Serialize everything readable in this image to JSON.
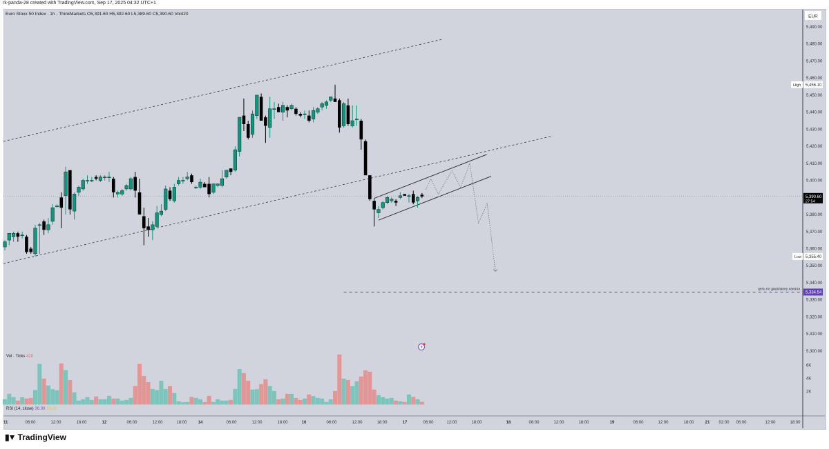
{
  "credit": "rk-panda-28 created with TradingView.com, Sep 17, 2025 04:32 UTC+1",
  "legend": {
    "symbol": "Euro Stoxx 50 Index · 1h · ThinkMarkets",
    "o": "O5,391.60",
    "h": "H5,392.60",
    "l": "L5,389.60",
    "c": "C5,390.60",
    "vol": "Vol420"
  },
  "volume_legend": {
    "label": "Vol · Ticks",
    "value": "420"
  },
  "rsi_legend": {
    "label": "RSI (14, close)",
    "value1": "36.98",
    "value2": "33.10"
  },
  "currency": "EUR",
  "logo_text": "TradingView",
  "colors": {
    "up": "#089981",
    "down": "#000000",
    "vol_up": "#7cc4bc",
    "vol_down": "#e49696",
    "target": "#5e3fb5",
    "bg": "#d1d4dc"
  },
  "price_axis": {
    "labels": [
      "5,490.00",
      "5,480.00",
      "5,470.00",
      "5,460.00",
      "5,450.00",
      "5,440.00",
      "5,430.00",
      "5,420.00",
      "5,410.00",
      "5,400.00",
      "5,380.00",
      "5,370.00",
      "5,360.00",
      "5,350.00",
      "5,340.00",
      "5,330.00",
      "5,320.00",
      "5,310.00",
      "5,300.00"
    ],
    "values": [
      5490,
      5480,
      5470,
      5460,
      5450,
      5440,
      5430,
      5420,
      5410,
      5400,
      5380,
      5370,
      5360,
      5350,
      5340,
      5330,
      5320,
      5310,
      5300
    ]
  },
  "markers": {
    "high": {
      "tag": "High",
      "price": "5,456.10",
      "value": 5456.1
    },
    "last": {
      "price": "5,390.60",
      "countdown": "27:54",
      "value": 5390.6
    },
    "low": {
      "tag": "Low",
      "price": "5,355.40",
      "value": 5355.4
    },
    "target": {
      "price": "5,334.54",
      "value": 5334.54,
      "text": "цель по диапазону канала"
    }
  },
  "volume_axis": {
    "labels": [
      "6K",
      "4K",
      "2K"
    ],
    "values": [
      6000,
      4000,
      2000
    ]
  },
  "time_axis": {
    "labels": [
      "11",
      "06:00",
      "12:00",
      "18:00",
      "12",
      "06:00",
      "12:00",
      "18:00",
      "14",
      "06:00",
      "12:00",
      "18:00",
      "16",
      "06:00",
      "12:00",
      "18:00",
      "17",
      "06:00",
      "12:00",
      "18:00",
      "18",
      "06:00",
      "12:00",
      "18:00",
      "19",
      "06:00",
      "12:00",
      "18:00",
      "21",
      "02:00",
      "06:00",
      "12:00",
      "18:00"
    ]
  },
  "chart_data": {
    "type": "candlestick",
    "title": "Euro Stoxx 50 Index · 1h · ThinkMarkets",
    "ylim": [
      5290,
      5495
    ],
    "ohlc": [
      [
        5361,
        5365,
        5359,
        5364
      ],
      [
        5365,
        5369,
        5362,
        5369
      ],
      [
        5367,
        5370,
        5364,
        5369
      ],
      [
        5369,
        5370,
        5364,
        5367
      ],
      [
        5368,
        5370,
        5366,
        5368
      ],
      [
        5367,
        5368,
        5357,
        5358
      ],
      [
        5360,
        5361,
        5357,
        5358
      ],
      [
        5357,
        5374,
        5355.4,
        5372
      ],
      [
        5374,
        5375,
        5357,
        5374
      ],
      [
        5376,
        5377,
        5368,
        5371
      ],
      [
        5371,
        5378,
        5369,
        5374
      ],
      [
        5376,
        5386,
        5374,
        5384
      ],
      [
        5385,
        5386,
        5384,
        5385
      ],
      [
        5390,
        5393,
        5372,
        5384
      ],
      [
        5391,
        5408,
        5380,
        5405
      ],
      [
        5406,
        5406,
        5380,
        5383
      ],
      [
        5382,
        5393,
        5377,
        5392
      ],
      [
        5393,
        5397,
        5391,
        5396
      ],
      [
        5395,
        5401,
        5394,
        5400
      ],
      [
        5400,
        5403,
        5398,
        5400
      ],
      [
        5400,
        5402,
        5399,
        5400
      ],
      [
        5402,
        5403,
        5400,
        5401
      ],
      [
        5400,
        5403,
        5399,
        5402
      ],
      [
        5402,
        5403,
        5400,
        5402
      ],
      [
        5402,
        5405,
        5399,
        5402
      ],
      [
        5401,
        5402,
        5390,
        5393
      ],
      [
        5392,
        5394,
        5390,
        5393
      ],
      [
        5392,
        5395,
        5391,
        5394
      ],
      [
        5395,
        5398,
        5394,
        5397
      ],
      [
        5395,
        5402,
        5394,
        5401
      ],
      [
        5402,
        5405,
        5390,
        5394
      ],
      [
        5393,
        5401,
        5380,
        5380
      ],
      [
        5379,
        5384,
        5362,
        5372
      ],
      [
        5373,
        5378,
        5367,
        5371
      ],
      [
        5371,
        5376,
        5365,
        5374
      ],
      [
        5373,
        5385,
        5372,
        5381
      ],
      [
        5380,
        5386,
        5379,
        5382
      ],
      [
        5383,
        5397,
        5382,
        5395
      ],
      [
        5394,
        5396,
        5388,
        5389
      ],
      [
        5388,
        5398,
        5387,
        5396
      ],
      [
        5398,
        5402,
        5397,
        5400
      ],
      [
        5400,
        5402,
        5398,
        5400
      ],
      [
        5401,
        5405,
        5400,
        5402
      ],
      [
        5403,
        5404,
        5398,
        5399
      ],
      [
        5396,
        5397,
        5395,
        5396
      ],
      [
        5396,
        5401,
        5395,
        5399
      ],
      [
        5398,
        5399,
        5396,
        5396
      ],
      [
        5398,
        5402,
        5390,
        5392
      ],
      [
        5393,
        5398,
        5392,
        5398
      ],
      [
        5397,
        5398,
        5396,
        5398
      ],
      [
        5397,
        5406,
        5396,
        5401
      ],
      [
        5402,
        5406,
        5401,
        5406
      ],
      [
        5407,
        5407,
        5403,
        5405
      ],
      [
        5406,
        5420,
        5405,
        5418
      ],
      [
        5417,
        5437,
        5414,
        5437
      ],
      [
        5438,
        5448,
        5429,
        5433
      ],
      [
        5433,
        5435,
        5424,
        5425
      ],
      [
        5427,
        5441,
        5425,
        5439
      ],
      [
        5438,
        5450,
        5436,
        5450
      ],
      [
        5449,
        5451,
        5435,
        5435
      ],
      [
        5437,
        5438,
        5422,
        5432
      ],
      [
        5431,
        5449,
        5425,
        5442
      ],
      [
        5442,
        5446,
        5436,
        5442
      ],
      [
        5443,
        5445,
        5440,
        5440
      ],
      [
        5440,
        5446,
        5435,
        5444
      ],
      [
        5443,
        5444,
        5437,
        5441
      ],
      [
        5442,
        5445,
        5441,
        5444
      ],
      [
        5442,
        5443,
        5438,
        5439
      ],
      [
        5439,
        5440,
        5437,
        5438
      ],
      [
        5439,
        5441,
        5436,
        5439
      ],
      [
        5438,
        5441,
        5434,
        5435
      ],
      [
        5436,
        5443,
        5434,
        5441
      ],
      [
        5440,
        5443,
        5439,
        5442
      ],
      [
        5443,
        5446,
        5441,
        5445
      ],
      [
        5444,
        5447,
        5442,
        5446
      ],
      [
        5447,
        5449,
        5446,
        5449
      ],
      [
        5448,
        5456.1,
        5446,
        5446
      ],
      [
        5447,
        5448,
        5428,
        5431
      ],
      [
        5432,
        5446,
        5431,
        5445
      ],
      [
        5444,
        5448,
        5432,
        5433
      ],
      [
        5432,
        5444,
        5431,
        5435
      ],
      [
        5436,
        5444,
        5432,
        5436
      ],
      [
        5435,
        5436,
        5418,
        5424
      ],
      [
        5423,
        5424,
        5403,
        5403
      ],
      [
        5403,
        5403,
        5388,
        5389
      ],
      [
        5388,
        5389,
        5373,
        5383
      ],
      [
        5381,
        5385,
        5378,
        5383
      ],
      [
        5384,
        5388,
        5383,
        5387
      ],
      [
        5387,
        5391,
        5386,
        5390
      ],
      [
        5388,
        5390,
        5387,
        5389
      ],
      [
        5388,
        5389,
        5385,
        5387
      ],
      [
        5390,
        5393,
        5389,
        5391
      ],
      [
        5392,
        5392,
        5391,
        5391
      ],
      [
        5391,
        5392,
        5387,
        5391
      ],
      [
        5392,
        5394,
        5386,
        5387
      ],
      [
        5388,
        5391,
        5384,
        5390
      ],
      [
        5391.6,
        5392.6,
        5389.6,
        5390.6
      ]
    ],
    "volume": [
      805,
      1645,
      1120,
      595,
      1120,
      910,
      1015,
      2205,
      6195,
      3955,
      2905,
      2345,
      2170,
      6265,
      5250,
      3745,
      1855,
      595,
      805,
      1120,
      700,
      1225,
      805,
      805,
      1330,
      910,
      910,
      595,
      700,
      1015,
      2800,
      6195,
      4375,
      3430,
      2380,
      2205,
      3640,
      2380,
      2800,
      1750,
      490,
      350,
      385,
      1155,
      1015,
      805,
      385,
      1330,
      385,
      805,
      595,
      595,
      700,
      2380,
      5425,
      4795,
      3640,
      2275,
      2345,
      3115,
      3850,
      2800,
      2065,
      805,
      910,
      1645,
      1645,
      1015,
      700,
      910,
      1540,
      1295,
      1015,
      910,
      385,
      805,
      2065,
      7630,
      3955,
      3745,
      2800,
      3535,
      4270,
      5215,
      5005,
      2275,
      1435,
      1120,
      910,
      1015,
      595,
      490,
      385,
      1540,
      1155,
      805,
      420
    ],
    "volume_ylim": [
      0,
      8000
    ],
    "drawings": {
      "upper_dashed_line": [
        [
          -0.3,
          5422.9
        ],
        [
          100.6,
          5482.7
        ]
      ],
      "lower_dashed_line": [
        [
          -0.3,
          5351.3
        ],
        [
          126.1,
          5426.1
        ]
      ],
      "channel_upper": [
        [
          84.9,
          5389.4
        ],
        [
          110.9,
          5415.2
        ]
      ],
      "channel_lower": [
        [
          86.0,
          5376.7
        ],
        [
          111.9,
          5402.4
        ]
      ],
      "projection_path": [
        [
          96.9,
          5394.6
        ],
        [
          98.0,
          5400.9
        ],
        [
          99.8,
          5391.9
        ],
        [
          102.9,
          5405.8
        ],
        [
          104.9,
          5395.9
        ],
        [
          107.0,
          5410.1
        ],
        [
          109.0,
          5375.0
        ],
        [
          111.0,
          5386.5
        ],
        [
          112.9,
          5346.7
        ]
      ],
      "target_line_start_bar": 78.0
    }
  }
}
